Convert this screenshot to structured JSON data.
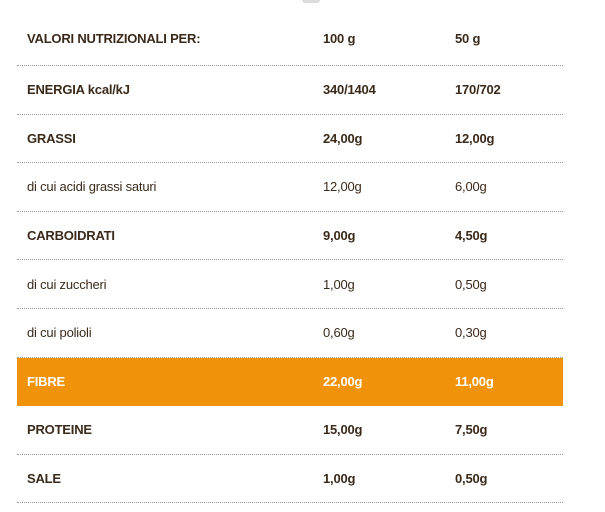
{
  "table": {
    "header": {
      "label": "VALORI NUTRIZIONALI PER:",
      "col1": "100 g",
      "col2": "50 g"
    },
    "rows": [
      {
        "label": "ENERGIA kcal/kJ",
        "v1": "340/1404",
        "v2": "170/702",
        "bold": true
      },
      {
        "label": "GRASSI",
        "v1": "24,00g",
        "v2": "12,00g",
        "bold": true
      },
      {
        "label": "di cui acidi grassi saturi",
        "v1": "12,00g",
        "v2": "6,00g",
        "bold": false
      },
      {
        "label": "CARBOIDRATI",
        "v1": "9,00g",
        "v2": "4,50g",
        "bold": true
      },
      {
        "label": "di cui zuccheri",
        "v1": "1,00g",
        "v2": "0,50g",
        "bold": false
      },
      {
        "label": "di cui polioli",
        "v1": "0,60g",
        "v2": "0,30g",
        "bold": false
      },
      {
        "label": "FIBRE",
        "v1": "22,00g",
        "v2": "11,00g",
        "bold": true,
        "highlight": true
      },
      {
        "label": "PROTEINE",
        "v1": "15,00g",
        "v2": "7,50g",
        "bold": true
      },
      {
        "label": "SALE",
        "v1": "1,00g",
        "v2": "0,50g",
        "bold": true
      }
    ]
  },
  "colors": {
    "text": "#3b2a1a",
    "highlight_bg": "#f0930b",
    "highlight_text": "#ffffff",
    "divider": "#9a9a9a"
  }
}
